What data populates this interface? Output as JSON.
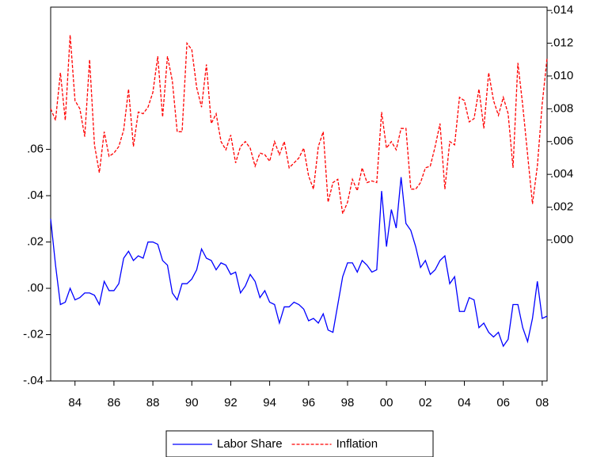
{
  "chart_data": {
    "type": "line",
    "x": [
      1982.75,
      1983,
      1983.25,
      1983.5,
      1983.75,
      1984,
      1984.25,
      1984.5,
      1984.75,
      1985,
      1985.25,
      1985.5,
      1985.75,
      1986,
      1986.25,
      1986.5,
      1986.75,
      1987,
      1987.25,
      1987.5,
      1987.75,
      1988,
      1988.25,
      1988.5,
      1988.75,
      1989,
      1989.25,
      1989.5,
      1989.75,
      1990,
      1990.25,
      1990.5,
      1990.75,
      1991,
      1991.25,
      1991.5,
      1991.75,
      1992,
      1992.25,
      1992.5,
      1992.75,
      1993,
      1993.25,
      1993.5,
      1993.75,
      1994,
      1994.25,
      1994.5,
      1994.75,
      1995,
      1995.25,
      1995.5,
      1995.75,
      1996,
      1996.25,
      1996.5,
      1996.75,
      1997,
      1997.25,
      1997.5,
      1997.75,
      1998,
      1998.25,
      1998.5,
      1998.75,
      1999,
      1999.25,
      1999.5,
      1999.75,
      2000,
      2000.25,
      2000.5,
      2000.75,
      2001,
      2001.25,
      2001.5,
      2001.75,
      2002,
      2002.25,
      2002.5,
      2002.75,
      2003,
      2003.25,
      2003.5,
      2003.75,
      2004,
      2004.25,
      2004.5,
      2004.75,
      2005,
      2005.25,
      2005.5,
      2005.75,
      2006,
      2006.25,
      2006.5,
      2006.75,
      2007,
      2007.25,
      2007.5,
      2007.75,
      2008,
      2008.25
    ],
    "series": [
      {
        "name": "Labor Share",
        "color": "#0000ff",
        "dash": false,
        "values": [
          0.03,
          0.01,
          -0.007,
          -0.006,
          0.0,
          -0.005,
          -0.004,
          -0.002,
          -0.002,
          -0.003,
          -0.007,
          0.003,
          -0.001,
          -0.001,
          0.002,
          0.013,
          0.016,
          0.012,
          0.014,
          0.013,
          0.02,
          0.02,
          0.019,
          0.012,
          0.01,
          -0.002,
          -0.005,
          0.002,
          0.002,
          0.004,
          0.008,
          0.017,
          0.013,
          0.012,
          0.008,
          0.011,
          0.01,
          0.006,
          0.007,
          -0.002,
          0.001,
          0.006,
          0.003,
          -0.004,
          -0.001,
          -0.006,
          -0.007,
          -0.015,
          -0.008,
          -0.008,
          -0.006,
          -0.007,
          -0.009,
          -0.014,
          -0.013,
          -0.015,
          -0.011,
          -0.018,
          -0.019,
          -0.007,
          0.005,
          0.011,
          0.011,
          0.007,
          0.012,
          0.01,
          0.007,
          0.008,
          0.042,
          0.018,
          0.034,
          0.026,
          0.048,
          0.028,
          0.025,
          0.018,
          0.009,
          0.012,
          0.006,
          0.008,
          0.012,
          0.014,
          0.002,
          0.005,
          -0.01,
          -0.01,
          -0.004,
          -0.005,
          -0.017,
          -0.015,
          -0.019,
          -0.021,
          -0.019,
          -0.025,
          -0.022,
          -0.007,
          -0.007,
          -0.017,
          -0.023,
          -0.013,
          0.003,
          -0.013,
          -0.012
        ]
      },
      {
        "name": "Inflation",
        "color": "#ff0000",
        "dash": true,
        "axis": "y2",
        "values": [
          0.008,
          0.0073,
          0.0102,
          0.0073,
          0.0125,
          0.0085,
          0.008,
          0.0063,
          0.011,
          0.0058,
          0.0041,
          0.0066,
          0.0051,
          0.0053,
          0.0057,
          0.0067,
          0.0092,
          0.0057,
          0.0078,
          0.0077,
          0.0081,
          0.009,
          0.0112,
          0.0075,
          0.0112,
          0.0097,
          0.0066,
          0.0066,
          0.012,
          0.0116,
          0.0093,
          0.0081,
          0.0107,
          0.0071,
          0.0077,
          0.006,
          0.0055,
          0.0064,
          0.0047,
          0.0057,
          0.006,
          0.0056,
          0.0045,
          0.0053,
          0.0052,
          0.0048,
          0.006,
          0.0052,
          0.006,
          0.0044,
          0.0047,
          0.005,
          0.0056,
          0.0039,
          0.0031,
          0.0057,
          0.0066,
          0.0023,
          0.0035,
          0.0037,
          0.0016,
          0.0023,
          0.0037,
          0.003,
          0.0044,
          0.0035,
          0.0036,
          0.0035,
          0.0078,
          0.0056,
          0.006,
          0.0055,
          0.0068,
          0.0068,
          0.0031,
          0.0031,
          0.0035,
          0.0044,
          0.0045,
          0.0057,
          0.0071,
          0.0031,
          0.006,
          0.0058,
          0.0087,
          0.0085,
          0.0072,
          0.0074,
          0.0092,
          0.0068,
          0.0102,
          0.0085,
          0.0076,
          0.0087,
          0.0077,
          0.0044,
          0.0108,
          0.0082,
          0.0052,
          0.0022,
          0.0045,
          0.0083,
          0.0111
        ]
      }
    ],
    "xlim": [
      1982.75,
      2008.25
    ],
    "xticks": [
      {
        "value": 1984,
        "label": "84"
      },
      {
        "value": 1986,
        "label": "86"
      },
      {
        "value": 1988,
        "label": "88"
      },
      {
        "value": 1990,
        "label": "90"
      },
      {
        "value": 1992,
        "label": "92"
      },
      {
        "value": 1994,
        "label": "94"
      },
      {
        "value": 1996,
        "label": "96"
      },
      {
        "value": 1998,
        "label": "98"
      },
      {
        "value": 2000,
        "label": "00"
      },
      {
        "value": 2002,
        "label": "02"
      },
      {
        "value": 2004,
        "label": "04"
      },
      {
        "value": 2006,
        "label": "06"
      },
      {
        "value": 2008,
        "label": "08"
      }
    ],
    "ylim": [
      -0.04,
      0.1214
    ],
    "yticks": [
      {
        "value": -0.04,
        "label": "-.04"
      },
      {
        "value": -0.02,
        "label": "-.02"
      },
      {
        "value": 0,
        "label": ".00"
      },
      {
        "value": 0.02,
        "label": ".02"
      },
      {
        "value": 0.04,
        "label": ".04"
      },
      {
        "value": 0.06,
        "label": ".06"
      }
    ],
    "y2lim": [
      -0.0086,
      0.0142
    ],
    "y2ticks": [
      {
        "value": 0,
        "label": ".000"
      },
      {
        "value": 0.002,
        "label": ".002"
      },
      {
        "value": 0.004,
        "label": ".004"
      },
      {
        "value": 0.006,
        "label": ".006"
      },
      {
        "value": 0.008,
        "label": ".008"
      },
      {
        "value": 0.01,
        "label": ".010"
      },
      {
        "value": 0.012,
        "label": ".012"
      },
      {
        "value": 0.014,
        "label": ".014"
      }
    ],
    "grid": false,
    "legend": "bottom"
  }
}
